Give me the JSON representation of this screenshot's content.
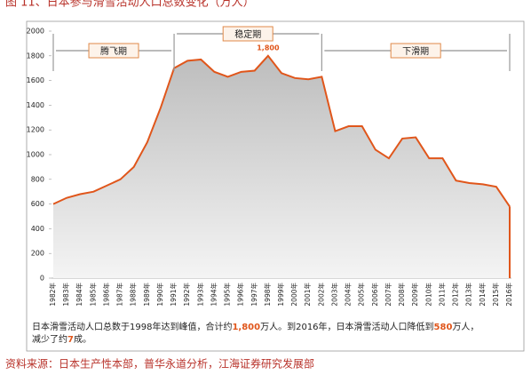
{
  "chart_data": {
    "type": "area",
    "title": "图 11、日本参与滑雪活动人口总数变化（万人）",
    "categories": [
      "1982年",
      "1983年",
      "1984年",
      "1985年",
      "1986年",
      "1987年",
      "1988年",
      "1989年",
      "1990年",
      "1991年",
      "1992年",
      "1993年",
      "1994年",
      "1995年",
      "1996年",
      "1997年",
      "1998年",
      "1999年",
      "2000年",
      "2001年",
      "2002年",
      "2003年",
      "2004年",
      "2005年",
      "2006年",
      "2007年",
      "2008年",
      "2009年",
      "2010年",
      "2011年",
      "2012年",
      "2013年",
      "2014年",
      "2015年",
      "2016年"
    ],
    "values": [
      600,
      650,
      680,
      700,
      750,
      800,
      900,
      1100,
      1380,
      1700,
      1760,
      1770,
      1670,
      1630,
      1670,
      1680,
      1800,
      1660,
      1620,
      1610,
      1630,
      1190,
      1230,
      1230,
      1040,
      970,
      1130,
      1140,
      970,
      970,
      790,
      770,
      760,
      740,
      580
    ],
    "value_labels": {
      "16": "1,800"
    },
    "color": "#e0561b",
    "ylim": [
      0,
      2000
    ],
    "yticks": [
      0,
      200,
      400,
      600,
      800,
      1000,
      1200,
      1400,
      1600,
      1800,
      2000
    ],
    "periods": [
      "腾飞期",
      "稳定期",
      "下滑期"
    ],
    "note": [
      "日本滑雪活动人口总数于1998年达到峰值，合计约",
      "1,800",
      "万人。到2016年，日本滑雪活动人口降低到",
      "580",
      "万人，",
      "减少了约",
      "7",
      "成。"
    ],
    "source": "资料来源：日本生产性本部，普华永道分析，江海证券研究发展部"
  }
}
